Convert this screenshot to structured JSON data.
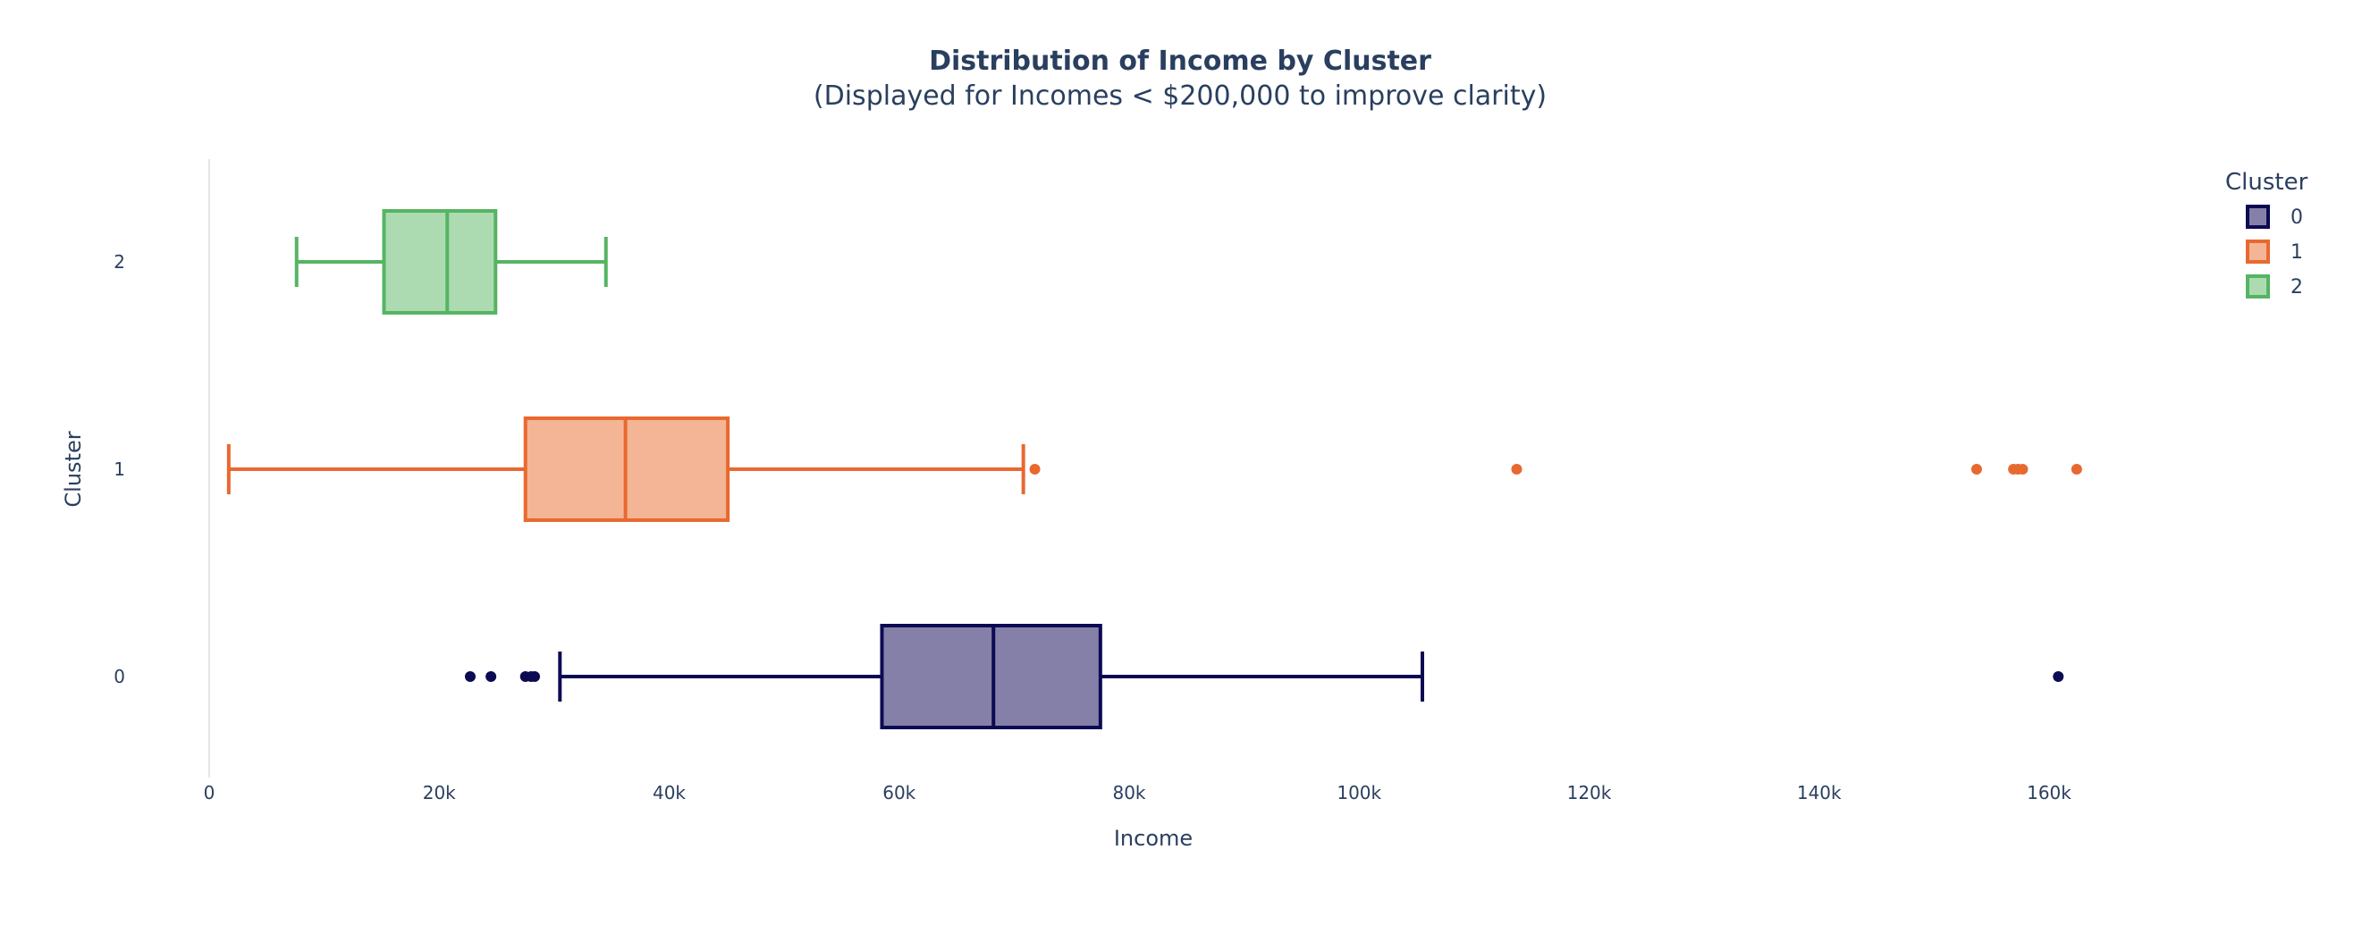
{
  "chart_data": {
    "type": "box",
    "title": "Distribution of Income by Cluster",
    "subtitle": "(Displayed for Incomes < $200,000 to improve clarity)",
    "xlabel": "Income",
    "ylabel": "Cluster",
    "xlim": [
      -2000,
      183000
    ],
    "x_ticks": [
      0,
      20000,
      40000,
      60000,
      80000,
      100000,
      120000,
      140000,
      160000
    ],
    "x_tick_labels": [
      "0",
      "20k",
      "40k",
      "60k",
      "80k",
      "100k",
      "120k",
      "140k",
      "160k"
    ],
    "categories": [
      "0",
      "1",
      "2"
    ],
    "legend": {
      "title": "Cluster",
      "position": "top-right"
    },
    "grid": false,
    "series": [
      {
        "name": "0",
        "color": "#0d0a54",
        "fill": "#8580a8",
        "whisker_low": 30500,
        "q1": 58500,
        "median": 68200,
        "q3": 77500,
        "whisker_high": 105500,
        "outliers": [
          22700,
          24500,
          27500,
          28000,
          28300,
          160800
        ]
      },
      {
        "name": "1",
        "color": "#e8692f",
        "fill": "#f4b596",
        "whisker_low": 1700,
        "q1": 27500,
        "median": 36200,
        "q3": 45100,
        "whisker_high": 70800,
        "outliers": [
          71800,
          113700,
          153700,
          156900,
          157300,
          157700,
          162400
        ]
      },
      {
        "name": "2",
        "color": "#56b463",
        "fill": "#addbb1",
        "whisker_low": 7600,
        "q1": 15200,
        "median": 20700,
        "q3": 24900,
        "whisker_high": 34500,
        "outliers": []
      }
    ]
  }
}
